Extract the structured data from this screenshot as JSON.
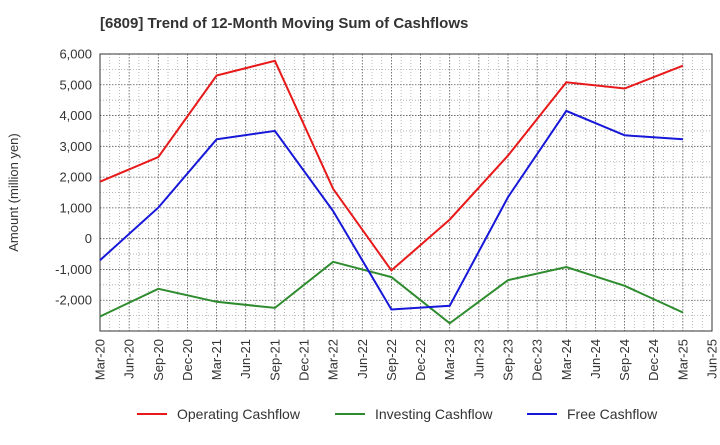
{
  "chart_data": {
    "type": "line",
    "title": "[6809]  Trend of 12-Month Moving Sum of Cashflows",
    "xlabel": "",
    "ylabel": "Amount (million yen)",
    "ylim": [
      -3000,
      6000
    ],
    "yticks": [
      6000,
      5000,
      4000,
      3000,
      2000,
      1000,
      0,
      -1000,
      -2000
    ],
    "ytick_labels": [
      "6,000",
      "5,000",
      "4,000",
      "3,000",
      "2,000",
      "1,000",
      "0",
      "-1,000",
      "-2,000"
    ],
    "categories": [
      "Mar-20",
      "Jun-20",
      "Sep-20",
      "Dec-20",
      "Mar-21",
      "Jun-21",
      "Sep-21",
      "Dec-21",
      "Mar-22",
      "Jun-22",
      "Sep-22",
      "Dec-22",
      "Mar-23",
      "Jun-23",
      "Sep-23",
      "Dec-23",
      "Mar-24",
      "Jun-24",
      "Sep-24",
      "Dec-24",
      "Mar-25",
      "Jun-25"
    ],
    "grid": true,
    "legend_position": "bottom",
    "series": [
      {
        "name": "Operating Cashflow",
        "color": "#e8191a",
        "values": [
          1850,
          null,
          2650,
          null,
          5300,
          null,
          5780,
          null,
          1620,
          null,
          -1030,
          null,
          620,
          null,
          2700,
          null,
          5080,
          null,
          4880,
          null,
          5620,
          null
        ]
      },
      {
        "name": "Investing Cashflow",
        "color": "#2e8b2e",
        "values": [
          -2530,
          null,
          -1630,
          null,
          -2050,
          null,
          -2250,
          null,
          -750,
          null,
          -1250,
          null,
          -2750,
          null,
          -1350,
          null,
          -920,
          null,
          -1530,
          null,
          -2400,
          null
        ]
      },
      {
        "name": "Free Cashflow",
        "color": "#1717d9",
        "values": [
          -700,
          null,
          1010,
          null,
          3230,
          null,
          3500,
          null,
          900,
          null,
          -2300,
          null,
          -2180,
          null,
          1350,
          null,
          4150,
          null,
          3360,
          null,
          3230,
          null
        ]
      }
    ]
  }
}
